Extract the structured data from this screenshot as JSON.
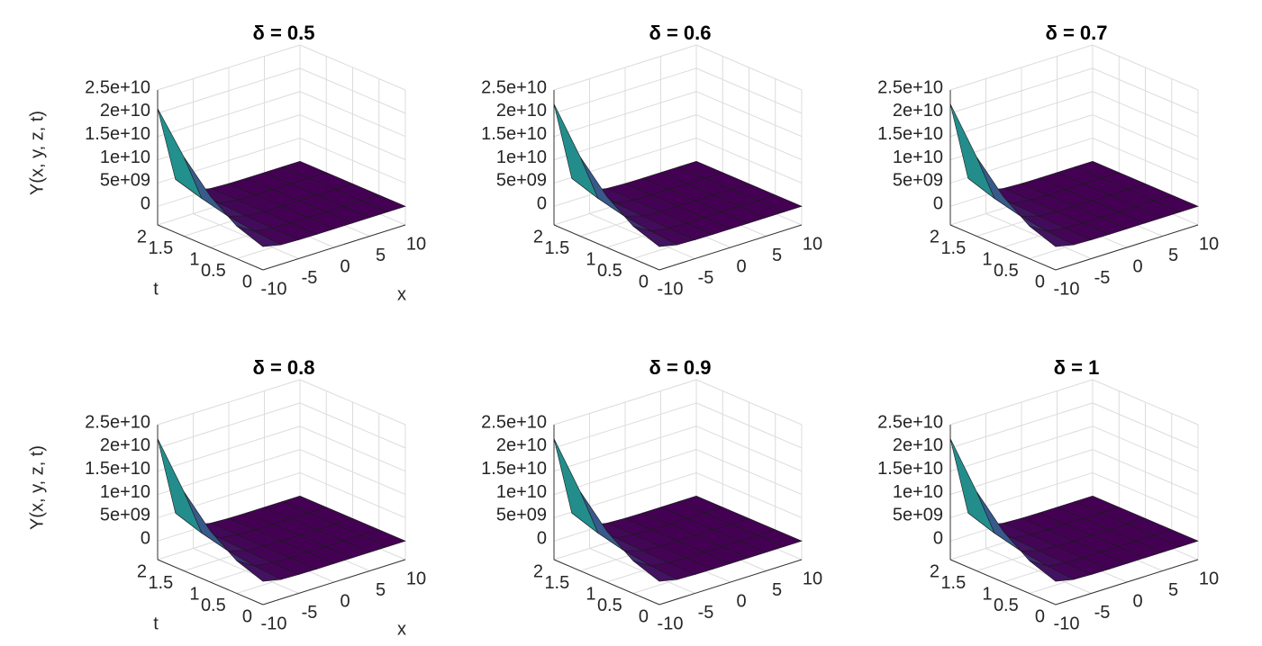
{
  "chart_data": [
    {
      "type": "surface",
      "title": "δ = 0.5",
      "zlabel": "Y(x, y, z, t)",
      "xlabel": "x",
      "ylabel": "t",
      "colormap": [
        "#440154",
        "#3b528b",
        "#21918c",
        "#5ec962",
        "#fde725"
      ],
      "x": [
        -10,
        -7.5,
        -5,
        -2.5,
        0,
        2.5,
        5,
        7.5,
        10
      ],
      "t": [
        0,
        0.5,
        1,
        1.5,
        2
      ],
      "z": [
        [
          1000000000.0,
          200000000.0,
          50000000.0,
          0,
          0,
          0,
          0,
          0,
          0
        ],
        [
          3000000000.0,
          700000000.0,
          150000000.0,
          0,
          0,
          0,
          0,
          0,
          0
        ],
        [
          7000000000.0,
          1500000000.0,
          350000000.0,
          80000000.0,
          0,
          0,
          0,
          0,
          0
        ],
        [
          13000000000.0,
          2900000000.0,
          650000000.0,
          150000000.0,
          0,
          0,
          0,
          0,
          0
        ],
        [
          21000000000.0,
          4600000000.0,
          1000000000.0,
          230000000.0,
          50000000.0,
          0,
          0,
          0,
          0
        ]
      ],
      "xlim": [
        -10,
        10
      ],
      "ylim": [
        0,
        2
      ],
      "zlim": [
        -4000000000.0,
        25000000000.0
      ],
      "xticks": [
        -10,
        -5,
        0,
        5,
        10
      ],
      "yticks": [
        0,
        0.5,
        1,
        1.5,
        2
      ],
      "zticks": [
        0,
        {
          "value": 5000000000.0,
          "label": "5e+09"
        },
        {
          "value": 10000000000.0,
          "label": "1e+10"
        },
        {
          "value": 15000000000.0,
          "label": "1.5e+10"
        },
        {
          "value": 20000000000.0,
          "label": "2e+10"
        },
        {
          "value": 25000000000.0,
          "label": "2.5e+10"
        }
      ],
      "grid": true
    },
    {
      "type": "surface",
      "title": "δ = 0.6",
      "colormap": [
        "#440154",
        "#3b528b",
        "#21918c",
        "#5ec962",
        "#fde725"
      ],
      "x": [
        -10,
        -7.5,
        -5,
        -2.5,
        0,
        2.5,
        5,
        7.5,
        10
      ],
      "t": [
        0,
        0.5,
        1,
        1.5,
        2
      ],
      "z": [
        [
          1000000000.0,
          200000000.0,
          50000000.0,
          0,
          0,
          0,
          0,
          0,
          0
        ],
        [
          3000000000.0,
          700000000.0,
          150000000.0,
          0,
          0,
          0,
          0,
          0,
          0
        ],
        [
          7000000000.0,
          1500000000.0,
          350000000.0,
          80000000.0,
          0,
          0,
          0,
          0,
          0
        ],
        [
          13000000000.0,
          2900000000.0,
          650000000.0,
          150000000.0,
          0,
          0,
          0,
          0,
          0
        ],
        [
          22000000000.0,
          4800000000.0,
          1000000000.0,
          230000000.0,
          50000000.0,
          0,
          0,
          0,
          0
        ]
      ],
      "xlim": [
        -10,
        10
      ],
      "ylim": [
        0,
        2
      ],
      "zlim": [
        -4000000000.0,
        25000000000.0
      ],
      "xticks": [
        -10,
        -5,
        0,
        5,
        10
      ],
      "yticks": [
        0,
        0.5,
        1,
        1.5,
        2
      ],
      "zticks": [
        0,
        {
          "value": 5000000000.0,
          "label": "5e+09"
        },
        {
          "value": 10000000000.0,
          "label": "1e+10"
        },
        {
          "value": 15000000000.0,
          "label": "1.5e+10"
        },
        {
          "value": 20000000000.0,
          "label": "2e+10"
        },
        {
          "value": 25000000000.0,
          "label": "2.5e+10"
        }
      ],
      "grid": true
    },
    {
      "type": "surface",
      "title": "δ = 0.7",
      "colormap": [
        "#440154",
        "#3b528b",
        "#21918c",
        "#5ec962",
        "#fde725"
      ],
      "x": [
        -10,
        -7.5,
        -5,
        -2.5,
        0,
        2.5,
        5,
        7.5,
        10
      ],
      "t": [
        0,
        0.5,
        1,
        1.5,
        2
      ],
      "z": [
        [
          1000000000.0,
          200000000.0,
          50000000.0,
          0,
          0,
          0,
          0,
          0,
          0
        ],
        [
          3000000000.0,
          700000000.0,
          150000000.0,
          0,
          0,
          0,
          0,
          0,
          0
        ],
        [
          7000000000.0,
          1500000000.0,
          350000000.0,
          80000000.0,
          0,
          0,
          0,
          0,
          0
        ],
        [
          13000000000.0,
          2900000000.0,
          650000000.0,
          150000000.0,
          0,
          0,
          0,
          0,
          0
        ],
        [
          22000000000.0,
          4800000000.0,
          1000000000.0,
          230000000.0,
          50000000.0,
          0,
          0,
          0,
          0
        ]
      ],
      "xlim": [
        -10,
        10
      ],
      "ylim": [
        0,
        2
      ],
      "zlim": [
        -4000000000.0,
        25000000000.0
      ],
      "xticks": [
        -10,
        -5,
        0,
        5,
        10
      ],
      "yticks": [
        0,
        0.5,
        1,
        1.5,
        2
      ],
      "zticks": [
        0,
        {
          "value": 5000000000.0,
          "label": "5e+09"
        },
        {
          "value": 10000000000.0,
          "label": "1e+10"
        },
        {
          "value": 15000000000.0,
          "label": "1.5e+10"
        },
        {
          "value": 20000000000.0,
          "label": "2e+10"
        },
        {
          "value": 25000000000.0,
          "label": "2.5e+10"
        }
      ],
      "grid": true
    },
    {
      "type": "surface",
      "title": "δ = 0.8",
      "zlabel": "Y(x, y, z, t)",
      "xlabel": "x",
      "ylabel": "t",
      "colormap": [
        "#440154",
        "#3b528b",
        "#21918c",
        "#5ec962",
        "#fde725"
      ],
      "x": [
        -10,
        -7.5,
        -5,
        -2.5,
        0,
        2.5,
        5,
        7.5,
        10
      ],
      "t": [
        0,
        0.5,
        1,
        1.5,
        2
      ],
      "z": [
        [
          1000000000.0,
          200000000.0,
          50000000.0,
          0,
          0,
          0,
          0,
          0,
          0
        ],
        [
          3000000000.0,
          700000000.0,
          150000000.0,
          0,
          0,
          0,
          0,
          0,
          0
        ],
        [
          7000000000.0,
          1500000000.0,
          350000000.0,
          80000000.0,
          0,
          0,
          0,
          0,
          0
        ],
        [
          13000000000.0,
          2900000000.0,
          650000000.0,
          150000000.0,
          0,
          0,
          0,
          0,
          0
        ],
        [
          22000000000.0,
          4800000000.0,
          1000000000.0,
          230000000.0,
          50000000.0,
          0,
          0,
          0,
          0
        ]
      ],
      "xlim": [
        -10,
        10
      ],
      "ylim": [
        0,
        2
      ],
      "zlim": [
        -4000000000.0,
        25000000000.0
      ],
      "xticks": [
        -10,
        -5,
        0,
        5,
        10
      ],
      "yticks": [
        0,
        0.5,
        1,
        1.5,
        2
      ],
      "zticks": [
        0,
        {
          "value": 5000000000.0,
          "label": "5e+09"
        },
        {
          "value": 10000000000.0,
          "label": "1e+10"
        },
        {
          "value": 15000000000.0,
          "label": "1.5e+10"
        },
        {
          "value": 20000000000.0,
          "label": "2e+10"
        },
        {
          "value": 25000000000.0,
          "label": "2.5e+10"
        }
      ],
      "grid": true
    },
    {
      "type": "surface",
      "title": "δ = 0.9",
      "colormap": [
        "#440154",
        "#3b528b",
        "#21918c",
        "#5ec962",
        "#fde725"
      ],
      "x": [
        -10,
        -7.5,
        -5,
        -2.5,
        0,
        2.5,
        5,
        7.5,
        10
      ],
      "t": [
        0,
        0.5,
        1,
        1.5,
        2
      ],
      "z": [
        [
          1000000000.0,
          200000000.0,
          50000000.0,
          0,
          0,
          0,
          0,
          0,
          0
        ],
        [
          3000000000.0,
          700000000.0,
          150000000.0,
          0,
          0,
          0,
          0,
          0,
          0
        ],
        [
          7000000000.0,
          1500000000.0,
          350000000.0,
          80000000.0,
          0,
          0,
          0,
          0,
          0
        ],
        [
          13000000000.0,
          2900000000.0,
          650000000.0,
          150000000.0,
          0,
          0,
          0,
          0,
          0
        ],
        [
          22000000000.0,
          4800000000.0,
          1000000000.0,
          230000000.0,
          50000000.0,
          0,
          0,
          0,
          0
        ]
      ],
      "xlim": [
        -10,
        10
      ],
      "ylim": [
        0,
        2
      ],
      "zlim": [
        -4000000000.0,
        25000000000.0
      ],
      "xticks": [
        -10,
        -5,
        0,
        5,
        10
      ],
      "yticks": [
        0,
        0.5,
        1,
        1.5,
        2
      ],
      "zticks": [
        0,
        {
          "value": 5000000000.0,
          "label": "5e+09"
        },
        {
          "value": 10000000000.0,
          "label": "1e+10"
        },
        {
          "value": 15000000000.0,
          "label": "1.5e+10"
        },
        {
          "value": 20000000000.0,
          "label": "2e+10"
        },
        {
          "value": 25000000000.0,
          "label": "2.5e+10"
        }
      ],
      "grid": true
    },
    {
      "type": "surface",
      "title": "δ = 1",
      "colormap": [
        "#440154",
        "#3b528b",
        "#21918c",
        "#5ec962",
        "#fde725"
      ],
      "x": [
        -10,
        -7.5,
        -5,
        -2.5,
        0,
        2.5,
        5,
        7.5,
        10
      ],
      "t": [
        0,
        0.5,
        1,
        1.5,
        2
      ],
      "z": [
        [
          1000000000.0,
          200000000.0,
          50000000.0,
          0,
          0,
          0,
          0,
          0,
          0
        ],
        [
          3000000000.0,
          700000000.0,
          150000000.0,
          0,
          0,
          0,
          0,
          0,
          0
        ],
        [
          7000000000.0,
          1500000000.0,
          350000000.0,
          80000000.0,
          0,
          0,
          0,
          0,
          0
        ],
        [
          13000000000.0,
          2900000000.0,
          650000000.0,
          150000000.0,
          0,
          0,
          0,
          0,
          0
        ],
        [
          22000000000.0,
          4800000000.0,
          1000000000.0,
          230000000.0,
          50000000.0,
          0,
          0,
          0,
          0
        ]
      ],
      "xlim": [
        -10,
        10
      ],
      "ylim": [
        0,
        2
      ],
      "zlim": [
        -4000000000.0,
        25000000000.0
      ],
      "xticks": [
        -10,
        -5,
        0,
        5,
        10
      ],
      "yticks": [
        0,
        0.5,
        1,
        1.5,
        2
      ],
      "zticks": [
        0,
        {
          "value": 5000000000.0,
          "label": "5e+09"
        },
        {
          "value": 10000000000.0,
          "label": "1e+10"
        },
        {
          "value": 15000000000.0,
          "label": "1.5e+10"
        },
        {
          "value": 20000000000.0,
          "label": "2e+10"
        },
        {
          "value": 25000000000.0,
          "label": "2.5e+10"
        }
      ],
      "grid": true
    }
  ]
}
